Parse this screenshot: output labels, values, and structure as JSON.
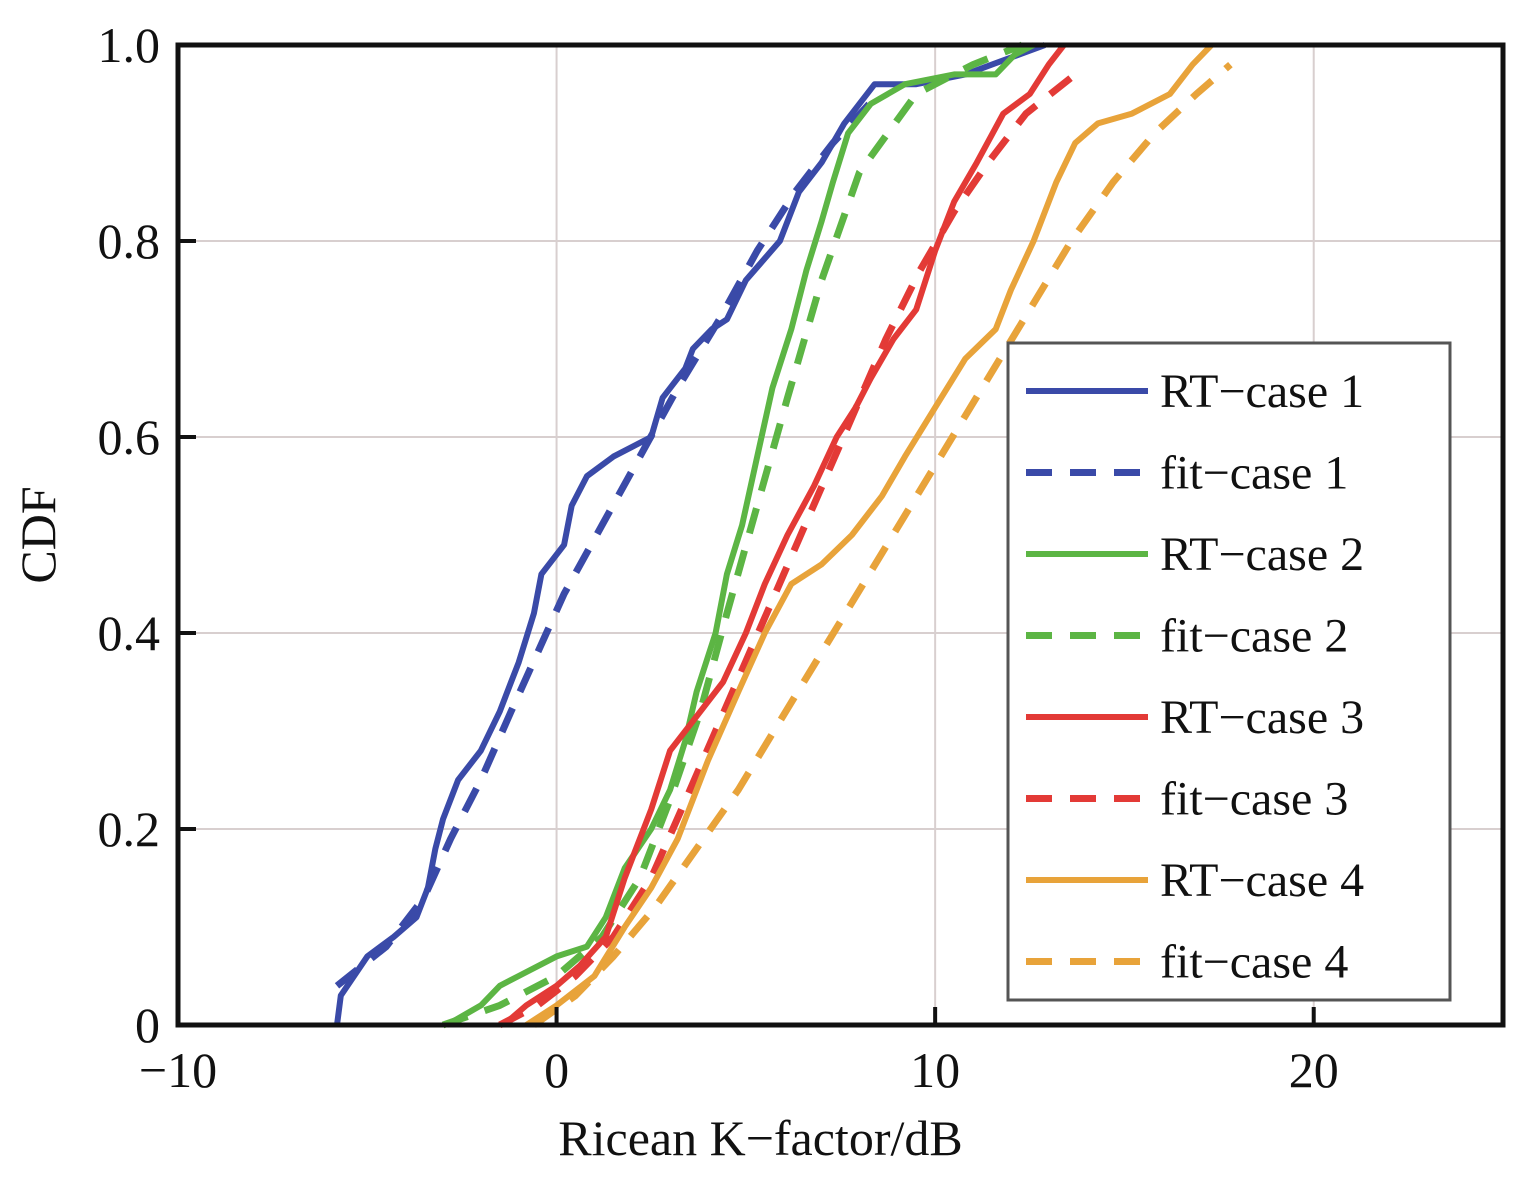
{
  "chart_data": {
    "type": "line",
    "title": "",
    "xlabel": "Ricean K−factor/dB",
    "ylabel": "CDF",
    "xlim": [
      -10,
      25
    ],
    "ylim": [
      0,
      1.0
    ],
    "x_ticks": [
      -10,
      0,
      10,
      20
    ],
    "x_tick_labels": [
      "−10",
      "0",
      "10",
      "20"
    ],
    "y_ticks": [
      0,
      0.2,
      0.4,
      0.6,
      0.8,
      1.0
    ],
    "y_tick_labels": [
      "0",
      "0.2",
      "0.4",
      "0.6",
      "0.8",
      "1.0"
    ],
    "grid": true,
    "legend_position": "right",
    "series": [
      {
        "name": "RT−case 1",
        "color": "#3a4aa8",
        "style": "solid",
        "x": [
          -5.8,
          -5.7,
          -5.0,
          -4.3,
          -3.7,
          -3.4,
          -3.2,
          -3.0,
          -2.6,
          -2.0,
          -1.5,
          -1.2,
          -1.0,
          -0.6,
          -0.4,
          0.2,
          0.4,
          0.8,
          1.5,
          2.5,
          2.8,
          3.4,
          3.6,
          4.1,
          4.5,
          5.0,
          5.9,
          6.4,
          7.0,
          7.6,
          8.4,
          9.5,
          10.8,
          11.5,
          12.2,
          12.9
        ],
        "y": [
          0,
          0.03,
          0.07,
          0.09,
          0.11,
          0.14,
          0.18,
          0.21,
          0.25,
          0.28,
          0.32,
          0.35,
          0.37,
          0.42,
          0.46,
          0.49,
          0.53,
          0.56,
          0.58,
          0.6,
          0.64,
          0.67,
          0.69,
          0.71,
          0.72,
          0.76,
          0.8,
          0.85,
          0.88,
          0.92,
          0.96,
          0.96,
          0.97,
          0.98,
          0.99,
          1.0
        ]
      },
      {
        "name": "fit−case 1",
        "color": "#3a4aa8",
        "style": "dashed",
        "x": [
          -5.8,
          -4.5,
          -3.5,
          -2.8,
          -2.0,
          -1.2,
          -0.5,
          0.2,
          1.2,
          2.2,
          3.2,
          4.3,
          5.3,
          6.3,
          7.3,
          8.5
        ],
        "y": [
          0.04,
          0.08,
          0.13,
          0.19,
          0.25,
          0.32,
          0.38,
          0.44,
          0.51,
          0.58,
          0.65,
          0.72,
          0.79,
          0.85,
          0.9,
          0.95
        ]
      },
      {
        "name": "RT−case 2",
        "color": "#5cb544",
        "style": "solid",
        "x": [
          -2.9,
          -2.0,
          -1.5,
          -1.0,
          0.0,
          0.8,
          1.3,
          1.8,
          2.5,
          3.0,
          3.4,
          3.7,
          4.2,
          4.5,
          4.9,
          5.3,
          5.7,
          6.2,
          6.6,
          7.0,
          7.3,
          7.7,
          8.3,
          9.2,
          10.5,
          11.6,
          12.1,
          12.6
        ],
        "y": [
          0,
          0.02,
          0.04,
          0.05,
          0.07,
          0.08,
          0.11,
          0.16,
          0.2,
          0.24,
          0.29,
          0.34,
          0.4,
          0.46,
          0.51,
          0.58,
          0.65,
          0.71,
          0.77,
          0.82,
          0.86,
          0.91,
          0.94,
          0.96,
          0.97,
          0.97,
          0.99,
          1.0
        ]
      },
      {
        "name": "fit−case 2",
        "color": "#5cb544",
        "style": "dashed",
        "x": [
          -3.0,
          -1.5,
          0.0,
          1.2,
          2.2,
          3.0,
          3.8,
          4.5,
          5.3,
          6.1,
          7.0,
          8.0,
          9.5,
          11.0,
          12.3
        ],
        "y": [
          0,
          0.02,
          0.05,
          0.09,
          0.15,
          0.23,
          0.32,
          0.42,
          0.53,
          0.64,
          0.76,
          0.87,
          0.95,
          0.98,
          1.0
        ]
      },
      {
        "name": "RT−case 3",
        "color": "#e33a36",
        "style": "solid",
        "x": [
          -1.4,
          -0.8,
          0.0,
          0.6,
          1.3,
          1.8,
          2.5,
          3.0,
          3.6,
          4.4,
          5.0,
          5.5,
          6.1,
          6.8,
          7.4,
          7.9,
          8.3,
          8.9,
          9.5,
          10.0,
          10.5,
          11.1,
          11.8,
          12.5,
          13.0,
          13.4
        ],
        "y": [
          0,
          0.02,
          0.04,
          0.06,
          0.09,
          0.15,
          0.22,
          0.28,
          0.31,
          0.35,
          0.4,
          0.45,
          0.5,
          0.55,
          0.6,
          0.63,
          0.66,
          0.7,
          0.73,
          0.79,
          0.84,
          0.88,
          0.93,
          0.95,
          0.98,
          1.0
        ]
      },
      {
        "name": "fit−case 3",
        "color": "#e33a36",
        "style": "dashed",
        "x": [
          -1.5,
          -0.5,
          0.5,
          1.5,
          2.5,
          3.3,
          4.2,
          5.1,
          6.0,
          6.9,
          7.8,
          8.7,
          9.6,
          10.5,
          11.4,
          12.4,
          13.7
        ],
        "y": [
          0,
          0.02,
          0.05,
          0.09,
          0.15,
          0.22,
          0.3,
          0.38,
          0.46,
          0.54,
          0.62,
          0.7,
          0.77,
          0.83,
          0.88,
          0.93,
          0.97
        ]
      },
      {
        "name": "RT−case 4",
        "color": "#e8a33a",
        "style": "solid",
        "x": [
          -0.8,
          0.0,
          1.0,
          1.8,
          2.5,
          3.2,
          4.0,
          4.8,
          5.5,
          6.2,
          7.0,
          7.8,
          8.6,
          9.2,
          10.0,
          10.8,
          11.6,
          12.0,
          12.6,
          13.2,
          13.7,
          14.3,
          15.2,
          16.2,
          16.8,
          17.3
        ],
        "y": [
          0,
          0.02,
          0.05,
          0.1,
          0.14,
          0.19,
          0.27,
          0.34,
          0.4,
          0.45,
          0.47,
          0.5,
          0.54,
          0.58,
          0.63,
          0.68,
          0.71,
          0.75,
          0.8,
          0.86,
          0.9,
          0.92,
          0.93,
          0.95,
          0.98,
          1.0
        ]
      },
      {
        "name": "fit−case 4",
        "color": "#e8a33a",
        "style": "dashed",
        "x": [
          -0.6,
          0.5,
          1.5,
          2.6,
          3.7,
          4.8,
          5.9,
          7.0,
          8.1,
          9.2,
          10.3,
          11.4,
          12.5,
          13.6,
          14.7,
          15.8,
          16.9,
          17.8
        ],
        "y": [
          0,
          0.03,
          0.07,
          0.12,
          0.18,
          0.24,
          0.31,
          0.38,
          0.45,
          0.52,
          0.59,
          0.66,
          0.73,
          0.8,
          0.86,
          0.91,
          0.95,
          0.98
        ]
      }
    ]
  }
}
